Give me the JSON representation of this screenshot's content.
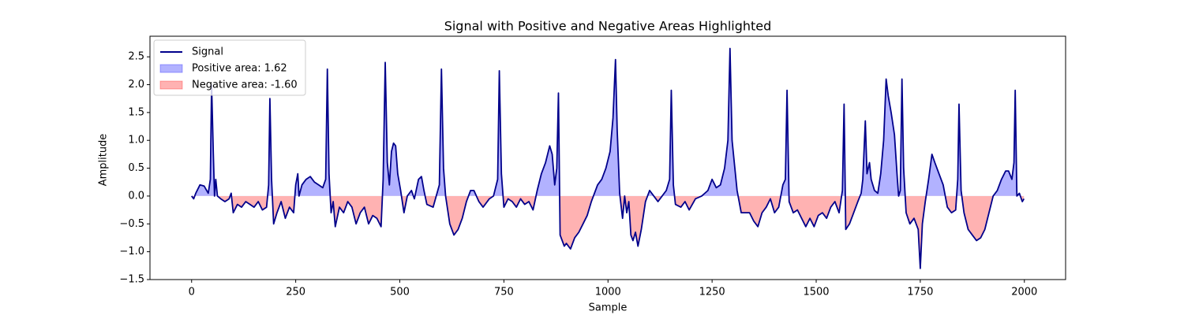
{
  "chart_data": {
    "type": "line",
    "title": "Signal with Positive and Negative Areas Highlighted",
    "xlabel": "Sample",
    "ylabel": "Amplitude",
    "x": [
      0,
      5,
      10,
      20,
      30,
      40,
      45,
      48,
      52,
      55,
      58,
      62,
      70,
      80,
      90,
      95,
      100,
      110,
      120,
      130,
      140,
      150,
      160,
      170,
      180,
      185,
      188,
      192,
      197,
      205,
      215,
      225,
      235,
      245,
      250,
      255,
      258,
      265,
      275,
      285,
      295,
      305,
      315,
      322,
      326,
      330,
      335,
      340,
      345,
      355,
      365,
      375,
      385,
      395,
      405,
      415,
      425,
      435,
      445,
      455,
      460,
      465,
      470,
      475,
      480,
      485,
      490,
      495,
      502,
      510,
      518,
      528,
      535,
      545,
      552,
      558,
      565,
      580,
      595,
      600,
      605,
      610,
      620,
      630,
      640,
      650,
      660,
      670,
      678,
      690,
      700,
      715,
      725,
      735,
      739,
      744,
      750,
      760,
      770,
      780,
      790,
      800,
      810,
      820,
      830,
      840,
      850,
      860,
      866,
      872,
      877,
      881,
      885,
      895,
      900,
      910,
      920,
      930,
      940,
      950,
      960,
      975,
      985,
      995,
      1005,
      1012,
      1018,
      1022,
      1028,
      1035,
      1040,
      1045,
      1050,
      1055,
      1060,
      1066,
      1072,
      1080,
      1090,
      1100,
      1110,
      1120,
      1130,
      1140,
      1148,
      1152,
      1157,
      1162,
      1175,
      1185,
      1195,
      1210,
      1225,
      1240,
      1250,
      1260,
      1270,
      1280,
      1288,
      1293,
      1298,
      1302,
      1310,
      1320,
      1330,
      1340,
      1350,
      1360,
      1370,
      1380,
      1390,
      1400,
      1410,
      1420,
      1426,
      1430,
      1435,
      1445,
      1455,
      1465,
      1475,
      1485,
      1495,
      1505,
      1515,
      1525,
      1535,
      1545,
      1555,
      1563,
      1567,
      1571,
      1580,
      1590,
      1600,
      1608,
      1612,
      1618,
      1622,
      1628,
      1632,
      1640,
      1648,
      1655,
      1662,
      1668,
      1673,
      1680,
      1688,
      1695,
      1698,
      1702,
      1706,
      1710,
      1716,
      1725,
      1735,
      1745,
      1750,
      1755,
      1762,
      1770,
      1778,
      1785,
      1795,
      1805,
      1815,
      1825,
      1835,
      1840,
      1843,
      1848,
      1855,
      1865,
      1875,
      1885,
      1895,
      1905,
      1915,
      1925,
      1935,
      1945,
      1955,
      1962,
      1970,
      1975,
      1978,
      1982,
      1988,
      1995,
      1999
    ],
    "series": [
      {
        "name": "Signal",
        "color": "#00008b",
        "values": [
          0,
          -0.05,
          0.05,
          0.2,
          0.18,
          0.05,
          0.3,
          2.0,
          0.8,
          0.0,
          0.3,
          0,
          -0.05,
          -0.1,
          -0.05,
          0.05,
          -0.3,
          -0.15,
          -0.2,
          -0.1,
          -0.15,
          -0.2,
          -0.1,
          -0.25,
          -0.2,
          0.2,
          1.75,
          0.3,
          -0.5,
          -0.3,
          -0.1,
          -0.4,
          -0.2,
          -0.3,
          0.2,
          0.4,
          0.0,
          0.2,
          0.3,
          0.35,
          0.25,
          0.2,
          0.15,
          0.3,
          2.28,
          0.4,
          -0.3,
          -0.1,
          -0.55,
          -0.2,
          -0.3,
          -0.1,
          -0.2,
          -0.5,
          -0.3,
          -0.2,
          -0.5,
          -0.35,
          -0.4,
          -0.55,
          0.3,
          2.4,
          0.6,
          0.2,
          0.8,
          0.95,
          0.9,
          0.4,
          0.1,
          -0.3,
          0.0,
          0.1,
          -0.05,
          0.3,
          0.35,
          0.1,
          -0.15,
          -0.2,
          0.2,
          2.28,
          0.5,
          0.0,
          -0.5,
          -0.7,
          -0.6,
          -0.4,
          -0.1,
          0.1,
          0.1,
          -0.1,
          -0.2,
          -0.05,
          0.0,
          0.3,
          2.25,
          0.4,
          -0.2,
          -0.05,
          -0.1,
          -0.2,
          -0.05,
          -0.15,
          -0.1,
          -0.25,
          0.1,
          0.4,
          0.6,
          0.9,
          0.75,
          0.2,
          0.5,
          1.85,
          -0.7,
          -0.9,
          -0.85,
          -0.95,
          -0.75,
          -0.65,
          -0.5,
          -0.35,
          -0.1,
          0.2,
          0.3,
          0.5,
          0.8,
          1.4,
          2.45,
          1.2,
          0.05,
          -0.4,
          0.0,
          -0.3,
          -0.1,
          -0.7,
          -0.8,
          -0.65,
          -0.9,
          -0.6,
          -0.1,
          0.1,
          0.0,
          -0.1,
          0.0,
          0.1,
          0.3,
          1.9,
          0.2,
          -0.15,
          -0.2,
          -0.1,
          -0.25,
          -0.05,
          0.0,
          0.1,
          0.3,
          0.15,
          0.2,
          0.5,
          1.0,
          2.65,
          1.0,
          0.7,
          0.1,
          -0.3,
          -0.3,
          -0.3,
          -0.45,
          -0.55,
          -0.3,
          -0.2,
          -0.05,
          -0.3,
          -0.2,
          0.2,
          0.3,
          1.9,
          -0.1,
          -0.3,
          -0.25,
          -0.4,
          -0.55,
          -0.4,
          -0.55,
          -0.35,
          -0.3,
          -0.4,
          -0.2,
          -0.1,
          -0.3,
          0.1,
          1.65,
          -0.6,
          -0.5,
          -0.3,
          -0.1,
          0.05,
          0.3,
          1.35,
          0.4,
          0.6,
          0.3,
          0.1,
          0.05,
          0.4,
          1.0,
          2.1,
          1.8,
          1.5,
          1.1,
          0.3,
          0.0,
          0.1,
          2.1,
          0.5,
          -0.3,
          -0.5,
          -0.4,
          -0.6,
          -1.3,
          -0.5,
          -0.1,
          0.3,
          0.75,
          0.6,
          0.4,
          0.2,
          -0.2,
          -0.3,
          -0.25,
          0.3,
          1.65,
          0.1,
          -0.3,
          -0.6,
          -0.7,
          -0.8,
          -0.75,
          -0.6,
          -0.3,
          0.0,
          0.1,
          0.3,
          0.45,
          0.45,
          0.3,
          0.6,
          1.9,
          0.0,
          0.05,
          -0.1,
          -0.05
        ]
      }
    ],
    "areas": [
      {
        "name": "Positive area: 1.62",
        "color": "#0000ff",
        "side": "positive"
      },
      {
        "name": "Negative area: -1.60",
        "color": "#ff0000",
        "side": "negative"
      }
    ],
    "xlim": [
      -100,
      2099
    ],
    "ylim": [
      -1.5,
      2.87
    ],
    "xticks": [
      0,
      250,
      500,
      750,
      1000,
      1250,
      1500,
      1750,
      2000
    ],
    "yticks": [
      {
        "value": -1.5,
        "label": "−1.5"
      },
      {
        "value": -1,
        "label": "−1.0"
      },
      {
        "value": -0.5,
        "label": "−0.5"
      },
      {
        "value": 0,
        "label": "0.0"
      },
      {
        "value": 0.5,
        "label": "0.5"
      },
      {
        "value": 1,
        "label": "1.0"
      },
      {
        "value": 1.5,
        "label": "1.5"
      },
      {
        "value": 2,
        "label": "2.0"
      },
      {
        "value": 2.5,
        "label": "2.5"
      }
    ],
    "legend": "upper left"
  }
}
